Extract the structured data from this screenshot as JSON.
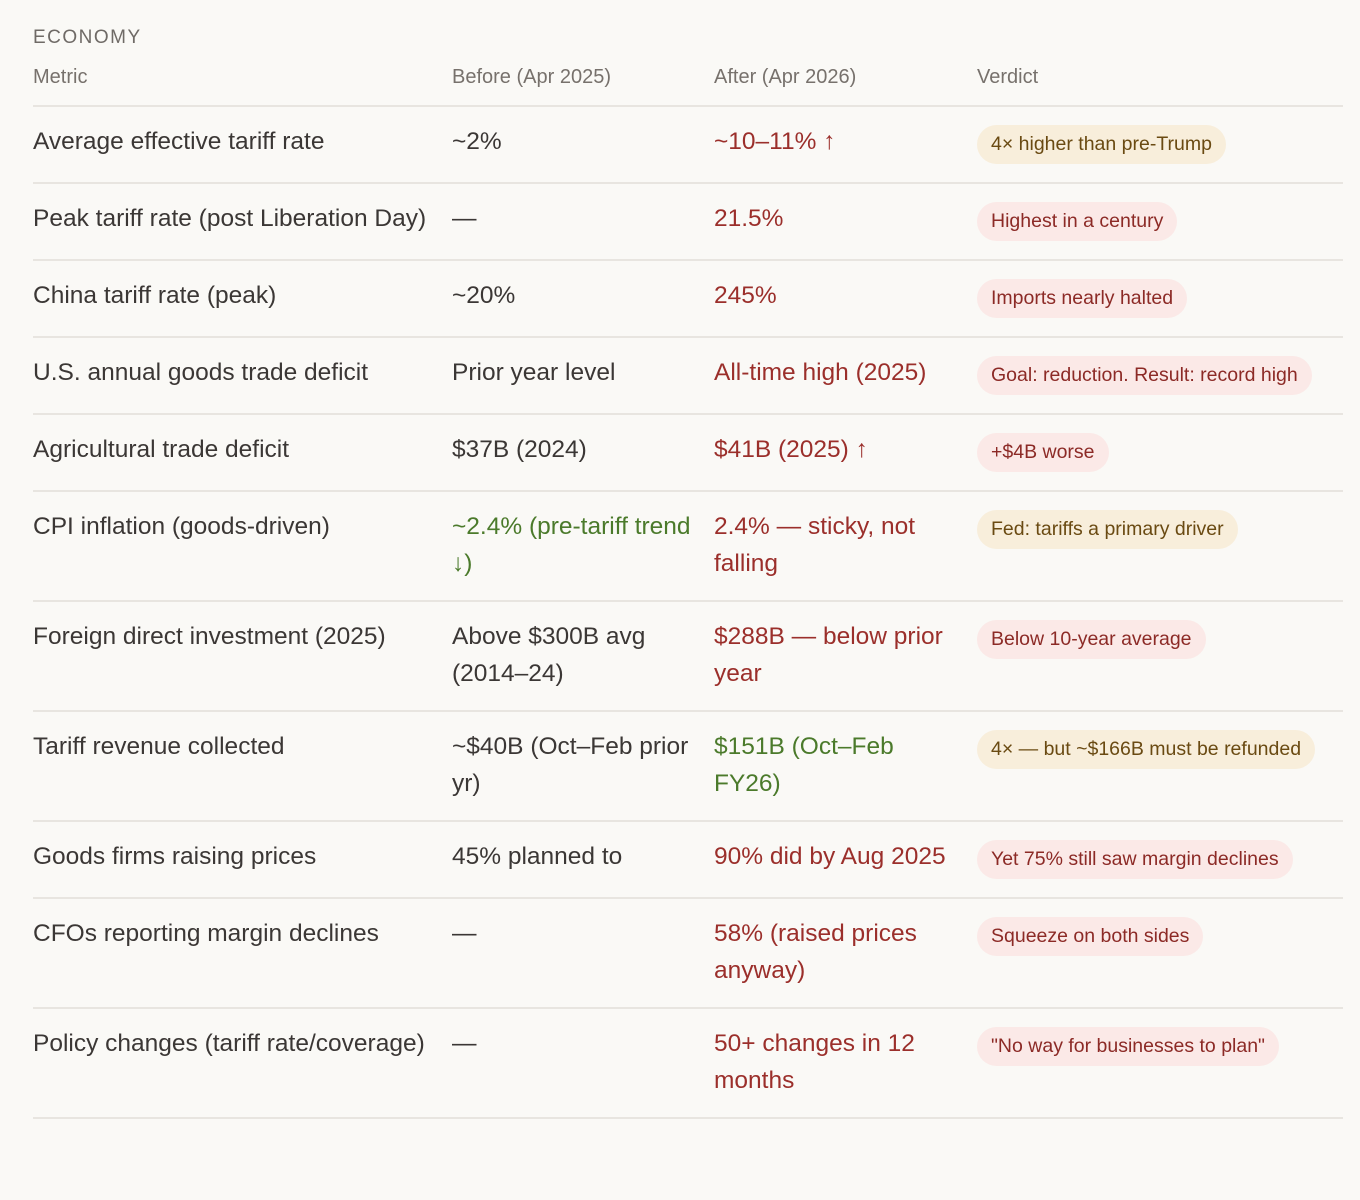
{
  "section_title": "ECONOMY",
  "columns": [
    "Metric",
    "Before (Apr 2025)",
    "After (Apr 2026)",
    "Verdict"
  ],
  "colors": {
    "red": "#9b2f2b",
    "green": "#4b7a2b",
    "amber_pill": "#f8eedb",
    "pink_pill": "#fbe9e7"
  },
  "rows": [
    {
      "metric": "Average effective tariff rate",
      "before": "~2%",
      "before_tone": "neutral",
      "after": "~10–11% ↑",
      "after_tone": "red",
      "verdict": "4× higher than pre-Trump",
      "verdict_tone": "amber"
    },
    {
      "metric": "Peak tariff rate (post Liberation Day)",
      "before": "—",
      "before_tone": "neutral",
      "after": "21.5%",
      "after_tone": "red",
      "verdict": "Highest in a century",
      "verdict_tone": "pink"
    },
    {
      "metric": "China tariff rate (peak)",
      "before": "~20%",
      "before_tone": "neutral",
      "after": "245%",
      "after_tone": "red",
      "verdict": "Imports nearly halted",
      "verdict_tone": "pink"
    },
    {
      "metric": "U.S. annual goods trade deficit",
      "before": "Prior year level",
      "before_tone": "neutral",
      "after": "All-time high (2025)",
      "after_tone": "red",
      "verdict": "Goal: reduction. Result: record high",
      "verdict_tone": "pink"
    },
    {
      "metric": "Agricultural trade deficit",
      "before": "$37B (2024)",
      "before_tone": "neutral",
      "after": "$41B (2025) ↑",
      "after_tone": "red",
      "verdict": "+$4B worse",
      "verdict_tone": "pink"
    },
    {
      "metric": "CPI inflation (goods-driven)",
      "before": "~2.4% (pre-tariff trend ↓)",
      "before_tone": "green",
      "after": "2.4% — sticky, not falling",
      "after_tone": "red",
      "verdict": "Fed: tariffs a primary driver",
      "verdict_tone": "amber"
    },
    {
      "metric": "Foreign direct investment (2025)",
      "before": "Above $300B avg (2014–24)",
      "before_tone": "neutral",
      "after": "$288B — below prior year",
      "after_tone": "red",
      "verdict": "Below 10-year average",
      "verdict_tone": "pink"
    },
    {
      "metric": "Tariff revenue collected",
      "before": "~$40B (Oct–Feb prior yr)",
      "before_tone": "neutral",
      "after": "$151B (Oct–Feb FY26)",
      "after_tone": "green",
      "verdict": "4× — but ~$166B must be refunded",
      "verdict_tone": "amber"
    },
    {
      "metric": "Goods firms raising prices",
      "before": "45% planned to",
      "before_tone": "neutral",
      "after": "90% did by Aug 2025",
      "after_tone": "red",
      "verdict": "Yet 75% still saw margin declines",
      "verdict_tone": "pink"
    },
    {
      "metric": "CFOs reporting margin declines",
      "before": "—",
      "before_tone": "neutral",
      "after": "58% (raised prices anyway)",
      "after_tone": "red",
      "verdict": "Squeeze on both sides",
      "verdict_tone": "pink"
    },
    {
      "metric": "Policy changes (tariff rate/coverage)",
      "before": "—",
      "before_tone": "neutral",
      "after": "50+ changes in 12 months",
      "after_tone": "red",
      "verdict": "\"No way for businesses to plan\"",
      "verdict_tone": "pink"
    }
  ]
}
